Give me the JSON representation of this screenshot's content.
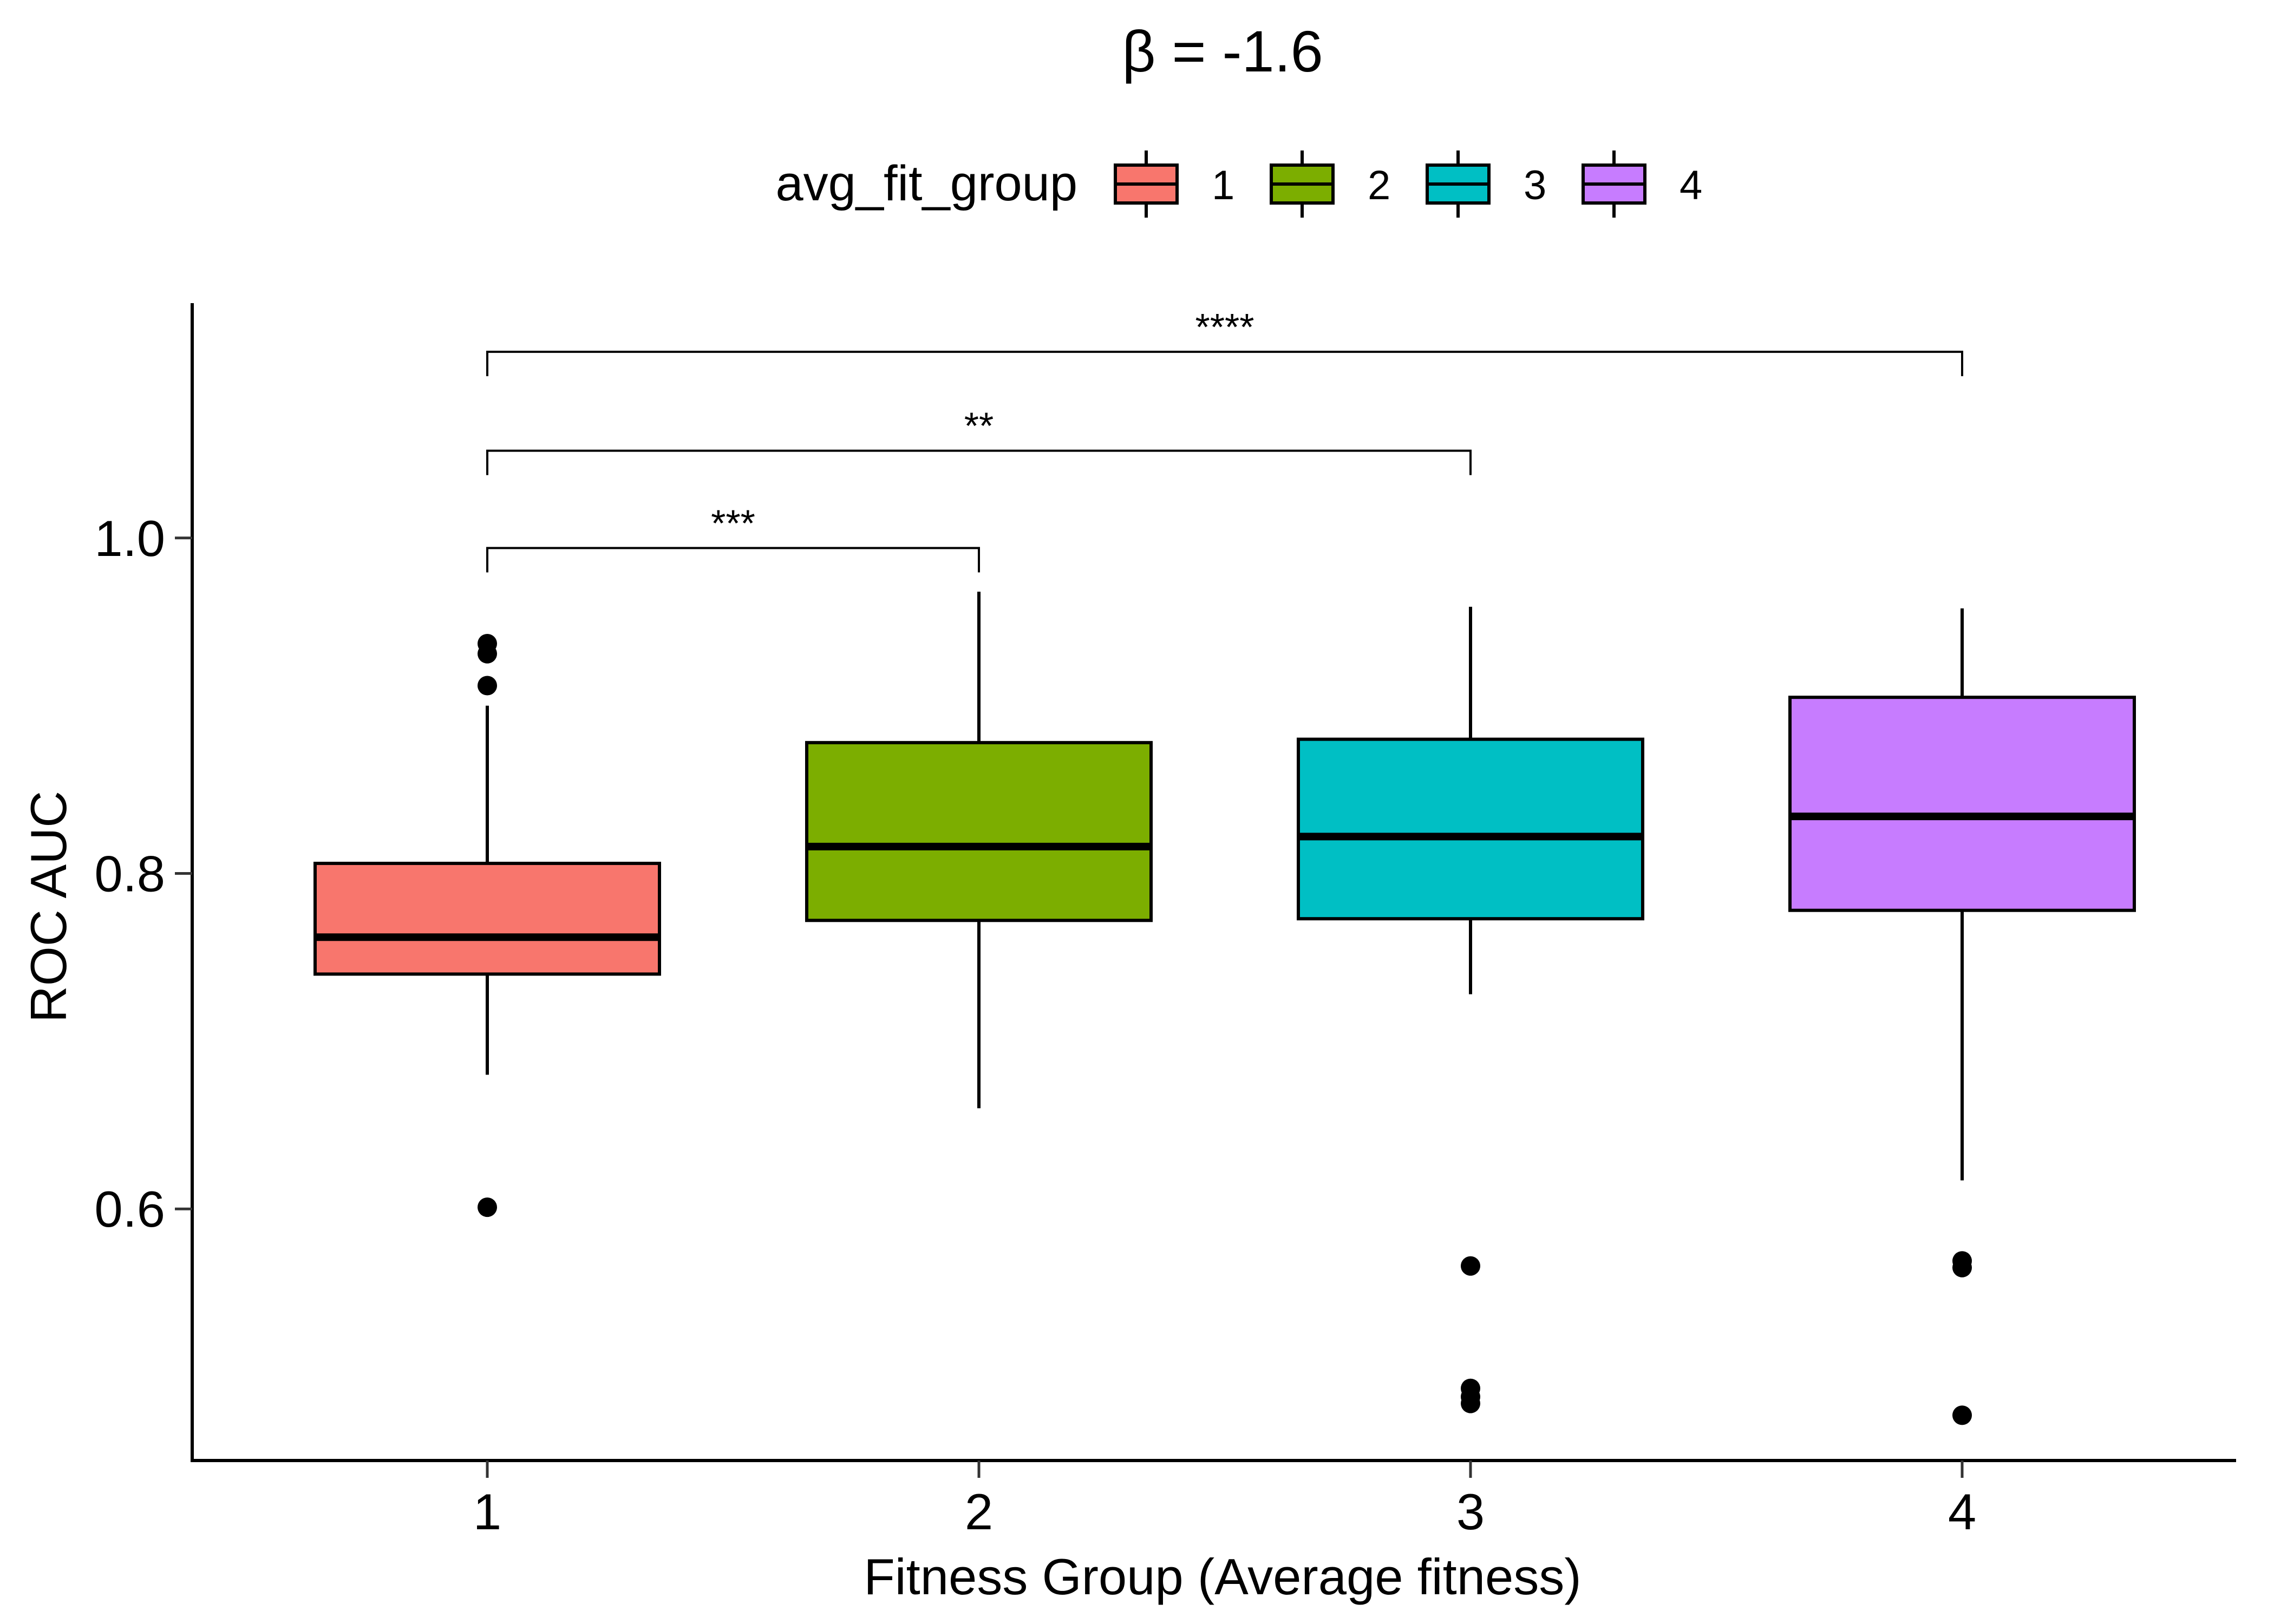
{
  "chart_data": {
    "type": "boxplot",
    "title": "β = -1.6",
    "xlabel": "Fitness Group (Average fitness)",
    "ylabel": "ROC AUC",
    "categories": [
      "1",
      "2",
      "3",
      "4"
    ],
    "ylim": [
      0.45,
      1.14
    ],
    "yticks": [
      0.6,
      0.8,
      1.0
    ],
    "ytick_labels": [
      "0.6",
      "0.8",
      "1.0"
    ],
    "grid": false,
    "legend": {
      "title": "avg_fit_group",
      "position": "top",
      "entries": [
        "1",
        "2",
        "3",
        "4"
      ]
    },
    "colors": [
      "#F8766D",
      "#7CAE00",
      "#00BFC4",
      "#C77CFF"
    ],
    "boxes": [
      {
        "group": "1",
        "whisker_low": 0.68,
        "q1": 0.74,
        "median": 0.762,
        "q3": 0.806,
        "whisker_high": 0.9,
        "outliers": [
          0.601,
          0.912,
          0.931,
          0.937
        ]
      },
      {
        "group": "2",
        "whisker_low": 0.66,
        "q1": 0.772,
        "median": 0.816,
        "q3": 0.878,
        "whisker_high": 0.968,
        "outliers": []
      },
      {
        "group": "3",
        "whisker_low": 0.728,
        "q1": 0.773,
        "median": 0.822,
        "q3": 0.88,
        "whisker_high": 0.959,
        "outliers": [
          0.566,
          0.493,
          0.488,
          0.484
        ]
      },
      {
        "group": "4",
        "whisker_low": 0.617,
        "q1": 0.778,
        "median": 0.834,
        "q3": 0.905,
        "whisker_high": 0.958,
        "outliers": [
          0.569,
          0.565,
          0.477
        ]
      }
    ],
    "significance": [
      {
        "from": "1",
        "to": "2",
        "label": "***",
        "y": 0.994
      },
      {
        "from": "1",
        "to": "3",
        "label": "**",
        "y": 1.052
      },
      {
        "from": "1",
        "to": "4",
        "label": "****",
        "y": 1.111
      }
    ]
  }
}
